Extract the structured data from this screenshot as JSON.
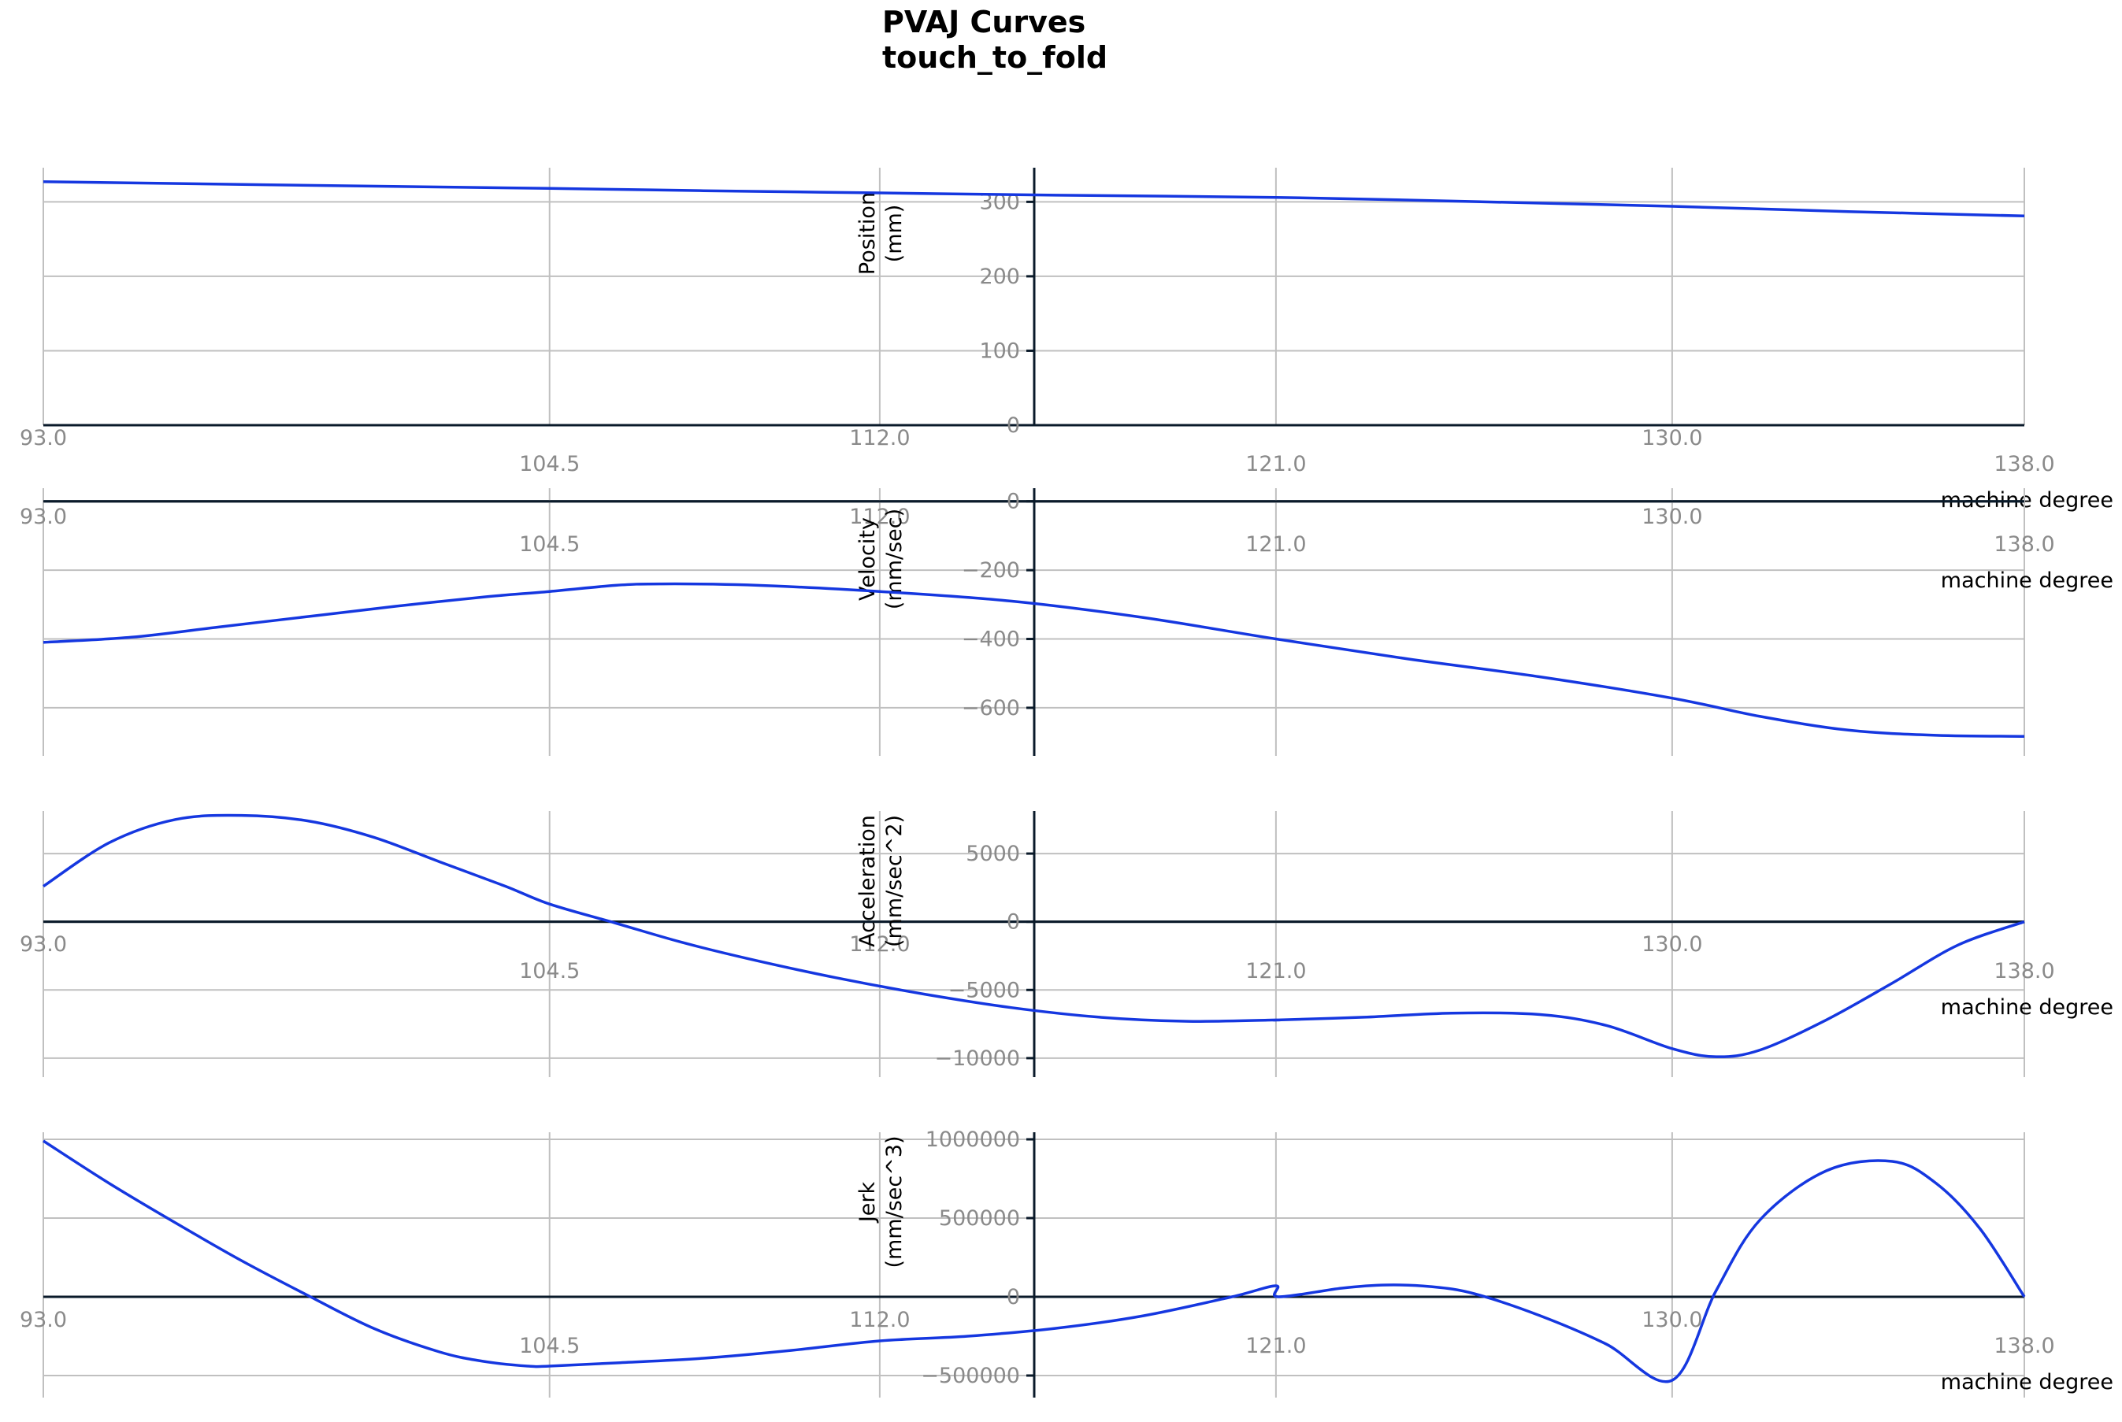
{
  "title_lines": [
    "PVAJ Curves",
    "touch_to_fold"
  ],
  "chart_data": [
    {
      "type": "line",
      "ylabel": [
        "Position",
        "(mm)"
      ],
      "xlabel": "machine degree",
      "xlim": [
        93.0,
        138.0
      ],
      "xticks": [
        "93.0",
        "104.5",
        "112.0",
        "121.0",
        "130.0",
        "138.0"
      ],
      "xtick_values": [
        93.0,
        104.5,
        112.0,
        121.0,
        130.0,
        138.0
      ],
      "ylim": [
        0,
        330
      ],
      "yticks": [
        0,
        100,
        200,
        300
      ],
      "ytick_labels": [
        "0",
        "100",
        "200",
        "300"
      ],
      "grid": true,
      "color": "#1537e0",
      "series": [
        {
          "x": [
            93.0,
            98.0,
            104.5,
            108.0,
            112.0,
            116.0,
            121.0,
            125.0,
            130.0,
            134.0,
            138.0
          ],
          "values": [
            327,
            323,
            318,
            315,
            312,
            309,
            306,
            301,
            294,
            287,
            281
          ]
        }
      ]
    },
    {
      "type": "line",
      "ylabel": [
        "Velocity",
        "(mm/sec)"
      ],
      "xlabel": "machine degree",
      "xlim": [
        93.0,
        138.0
      ],
      "xticks": [
        "93.0",
        "104.5",
        "112.0",
        "121.0",
        "130.0",
        "138.0"
      ],
      "xtick_values": [
        93.0,
        104.5,
        112.0,
        121.0,
        130.0,
        138.0
      ],
      "ylim": [
        -710,
        20
      ],
      "yticks": [
        0,
        -200,
        -400,
        -600
      ],
      "ytick_labels": [
        "0",
        "−200",
        "−400",
        "−600"
      ],
      "grid": true,
      "color": "#1537e0",
      "series": [
        {
          "x": [
            93.0,
            95.0,
            97.0,
            99.0,
            101.0,
            103.0,
            104.5,
            106.0,
            107.0,
            109.0,
            112.0,
            115.0,
            118.0,
            121.0,
            124.0,
            127.0,
            130.0,
            132.0,
            134.0,
            136.0,
            138.0
          ],
          "values": [
            -410,
            -395,
            -365,
            -335,
            -305,
            -278,
            -262,
            -244,
            -240,
            -243,
            -262,
            -290,
            -338,
            -400,
            -458,
            -510,
            -572,
            -625,
            -665,
            -680,
            -683
          ]
        }
      ]
    },
    {
      "type": "line",
      "ylabel": [
        "Acceleration",
        "(mm/sec^2)"
      ],
      "xlabel": "machine degree",
      "xlim": [
        93.0,
        138.0
      ],
      "xticks": [
        "93.0",
        "104.5",
        "112.0",
        "121.0",
        "130.0",
        "138.0"
      ],
      "xtick_values": [
        93.0,
        104.5,
        112.0,
        121.0,
        130.0,
        138.0
      ],
      "ylim": [
        -10700,
        8700
      ],
      "yticks": [
        5000,
        0,
        -5000,
        -10000
      ],
      "ytick_labels": [
        "5000",
        "0",
        "−5000",
        "−10000"
      ],
      "grid": true,
      "color": "#1537e0",
      "series": [
        {
          "x": [
            93.0,
            94.5,
            96.0,
            97.5,
            99.0,
            100.5,
            102.0,
            103.5,
            104.5,
            106.0,
            107.5,
            109.0,
            111.0,
            113.0,
            115.0,
            117.0,
            119.0,
            121.0,
            121.05,
            123.0,
            125.0,
            127.0,
            128.5,
            130.0,
            131.0,
            132.0,
            133.5,
            135.0,
            136.5,
            138.0
          ],
          "values": [
            2600,
            5800,
            7500,
            7800,
            7400,
            6200,
            4400,
            2600,
            1300,
            -100,
            -1500,
            -2700,
            -4100,
            -5300,
            -6300,
            -7000,
            -7300,
            -7200,
            -7200,
            -7000,
            -6700,
            -6800,
            -7600,
            -9300,
            -9900,
            -9400,
            -7200,
            -4500,
            -1700,
            0
          ]
        }
      ]
    },
    {
      "type": "line",
      "ylabel": [
        "Jerk",
        "(mm/sec^3)"
      ],
      "xlabel": "machine degree",
      "xlim": [
        93.0,
        138.0
      ],
      "xticks": [
        "93.0",
        "104.5",
        "112.0",
        "121.0",
        "130.0",
        "138.0"
      ],
      "xtick_values": [
        93.0,
        104.5,
        112.0,
        121.0,
        130.0,
        138.0
      ],
      "ylim": [
        -600000,
        1050000
      ],
      "yticks": [
        1000000,
        500000,
        0,
        -500000
      ],
      "ytick_labels": [
        "1000000",
        "500000",
        "0",
        "−500000"
      ],
      "grid": true,
      "color": "#1537e0",
      "series": [
        {
          "x": [
            93.0,
            94.5,
            96.0,
            97.5,
            99.0,
            100.5,
            102.0,
            103.0,
            104.0,
            104.5,
            106.0,
            108.0,
            110.0,
            112.0,
            114.0,
            116.0,
            118.0,
            120.0,
            121.0,
            121.05,
            122.5,
            123.5,
            124.5,
            125.5,
            127.0,
            128.5,
            130.0,
            131.0,
            132.0,
            133.5,
            135.0,
            136.0,
            137.0,
            138.0
          ],
          "values": [
            990000,
            720000,
            470000,
            230000,
            10000,
            -200000,
            -350000,
            -410000,
            -440000,
            -440000,
            -420000,
            -390000,
            -340000,
            -280000,
            -250000,
            -200000,
            -120000,
            0,
            70000,
            0,
            55000,
            75000,
            65000,
            20000,
            -120000,
            -300000,
            -530000,
            40000,
            490000,
            800000,
            860000,
            720000,
            430000,
            0
          ]
        }
      ]
    }
  ]
}
